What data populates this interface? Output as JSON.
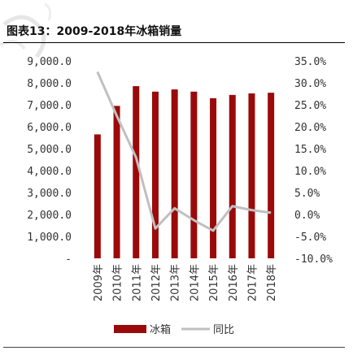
{
  "title": "图表13：2009-2018年冰箱销量",
  "chart_data": {
    "type": "bar+line",
    "categories": [
      "2009年",
      "2010年",
      "2011年",
      "2012年",
      "2013年",
      "2014年",
      "2015年",
      "2016年",
      "2017年",
      "2018年"
    ],
    "series": [
      {
        "name": "冰箱",
        "type": "bar",
        "axis": "left",
        "color": "#9b0a0a",
        "values": [
          5650,
          6950,
          7850,
          7600,
          7700,
          7600,
          7300,
          7450,
          7520,
          7550
        ]
      },
      {
        "name": "同比",
        "type": "line",
        "axis": "right",
        "color": "#c0c0c0",
        "values": [
          32.5,
          22.5,
          13.0,
          -3.2,
          1.4,
          -1.3,
          -3.7,
          1.9,
          1.0,
          0.4
        ]
      }
    ],
    "y_left": {
      "ticks": [
        "9,000.0",
        "8,000.0",
        "7,000.0",
        "6,000.0",
        "5,000.0",
        "4,000.0",
        "3,000.0",
        "2,000.0",
        "1,000.0",
        "-"
      ],
      "range": [
        0,
        9000
      ]
    },
    "y_right": {
      "ticks": [
        "35.0%",
        "30.0%",
        "25.0%",
        "20.0%",
        "15.0%",
        "10.0%",
        "5.0%",
        "0.0%",
        "-5.0%",
        "-10.0%"
      ],
      "range": [
        -10,
        35
      ]
    },
    "legend": {
      "position": "bottom",
      "items": [
        "冰箱",
        "同比"
      ]
    }
  }
}
